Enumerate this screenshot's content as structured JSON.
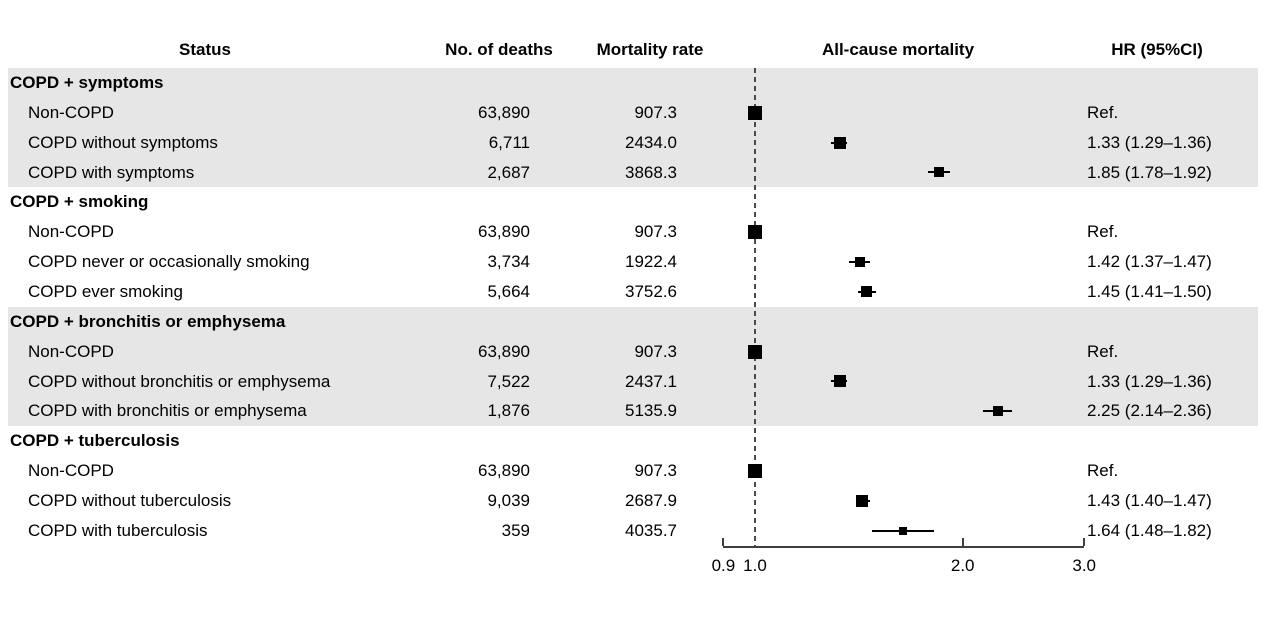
{
  "chart_data": {
    "type": "forest",
    "title": "",
    "scale": "log",
    "xlim": [
      0.9,
      3.0
    ],
    "x_ticks": [
      0.9,
      1.0,
      2.0,
      3.0
    ],
    "x_tick_labels": [
      "0.9",
      "1.0",
      "2.0",
      "3.0"
    ],
    "reference_line": 1.0,
    "columns": [
      "Status",
      "No. of deaths",
      "Mortality rate",
      "All-cause mortality",
      "HR (95%CI)"
    ],
    "groups": [
      {
        "label": "COPD + symptoms",
        "shaded": true,
        "rows": [
          {
            "status": "Non-COPD",
            "deaths": "63,890",
            "mortality_rate": "907.3",
            "hr": 1.0,
            "ci": null,
            "hr_label": "Ref.",
            "marker_size": 14
          },
          {
            "status": "COPD without symptoms",
            "deaths": "6,711",
            "mortality_rate": "2434.0",
            "hr": 1.33,
            "ci": [
              1.29,
              1.36
            ],
            "hr_label": "1.33 (1.29–1.36)",
            "marker_size": 12
          },
          {
            "status": "COPD with symptoms",
            "deaths": "2,687",
            "mortality_rate": "3868.3",
            "hr": 1.85,
            "ci": [
              1.78,
              1.92
            ],
            "hr_label": "1.85 (1.78–1.92)",
            "marker_size": 10
          }
        ]
      },
      {
        "label": "COPD + smoking",
        "shaded": false,
        "rows": [
          {
            "status": "Non-COPD",
            "deaths": "63,890",
            "mortality_rate": "907.3",
            "hr": 1.0,
            "ci": null,
            "hr_label": "Ref.",
            "marker_size": 14
          },
          {
            "status": "COPD never or occasionally smoking",
            "deaths": "3,734",
            "mortality_rate": "1922.4",
            "hr": 1.42,
            "ci": [
              1.37,
              1.47
            ],
            "hr_label": "1.42 (1.37–1.47)",
            "marker_size": 10
          },
          {
            "status": "COPD ever smoking",
            "deaths": "5,664",
            "mortality_rate": "3752.6",
            "hr": 1.45,
            "ci": [
              1.41,
              1.5
            ],
            "hr_label": "1.45 (1.41–1.50)",
            "marker_size": 11
          }
        ]
      },
      {
        "label": "COPD + bronchitis or emphysema",
        "shaded": true,
        "rows": [
          {
            "status": "Non-COPD",
            "deaths": "63,890",
            "mortality_rate": "907.3",
            "hr": 1.0,
            "ci": null,
            "hr_label": "Ref.",
            "marker_size": 14
          },
          {
            "status": "COPD without bronchitis or emphysema",
            "deaths": "7,522",
            "mortality_rate": "2437.1",
            "hr": 1.33,
            "ci": [
              1.29,
              1.36
            ],
            "hr_label": "1.33 (1.29–1.36)",
            "marker_size": 12
          },
          {
            "status": "COPD with bronchitis or emphysema",
            "deaths": "1,876",
            "mortality_rate": "5135.9",
            "hr": 2.25,
            "ci": [
              2.14,
              2.36
            ],
            "hr_label": "2.25 (2.14–2.36)",
            "marker_size": 10
          }
        ]
      },
      {
        "label": "COPD + tuberculosis",
        "shaded": false,
        "rows": [
          {
            "status": "Non-COPD",
            "deaths": "63,890",
            "mortality_rate": "907.3",
            "hr": 1.0,
            "ci": null,
            "hr_label": "Ref.",
            "marker_size": 14
          },
          {
            "status": "COPD without tuberculosis",
            "deaths": "9,039",
            "mortality_rate": "2687.9",
            "hr": 1.43,
            "ci": [
              1.4,
              1.47
            ],
            "hr_label": "1.43 (1.40–1.47)",
            "marker_size": 12
          },
          {
            "status": "COPD with tuberculosis",
            "deaths": "359",
            "mortality_rate": "4035.7",
            "hr": 1.64,
            "ci": [
              1.48,
              1.82
            ],
            "hr_label": "1.64 (1.48–1.82)",
            "marker_size": 8
          }
        ]
      }
    ],
    "colors": {
      "band_shaded": "#e6e6e6",
      "marker": "#000000",
      "reference_line": "#4a4a4a",
      "axis": "#3d3d3d",
      "text": "#000000"
    }
  }
}
